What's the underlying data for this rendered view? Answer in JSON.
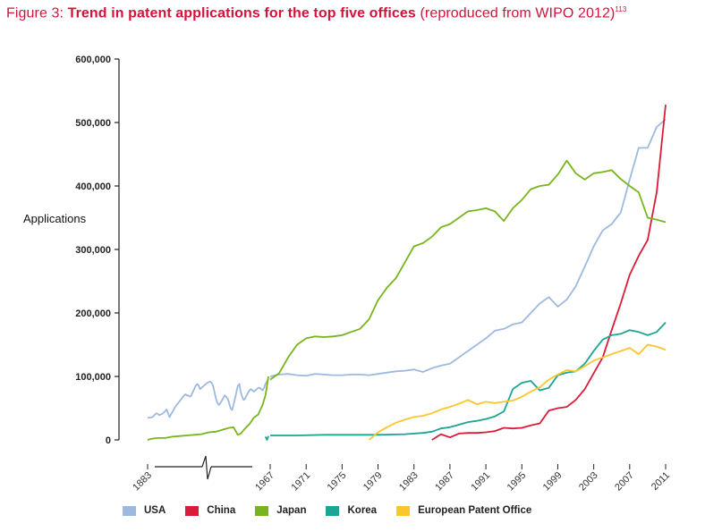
{
  "title": {
    "prefix": "Figure 3: ",
    "main": "Trend in patent applications for the top five offices",
    "suffix": " (reproduced from WIPO 2012)",
    "footnote": "113"
  },
  "colors": {
    "title": "#d0143c",
    "USA": "#9db9e0",
    "China": "#d91c3a",
    "Japan": "#78b41e",
    "Korea": "#1aa595",
    "European Patent Office": "#fbc52c"
  },
  "chart_data": {
    "type": "line",
    "ylabel": "Applications",
    "ylim": [
      0,
      600000
    ],
    "yticks": [
      "0",
      "100,000",
      "200,000",
      "300,000",
      "400,000",
      "500,000",
      "600,000"
    ],
    "xticks": [
      "1883",
      "1967",
      "1971",
      "1975",
      "1979",
      "1983",
      "1987",
      "1991",
      "1995",
      "1999",
      "2003",
      "2007",
      "2011"
    ],
    "x_axis_break": "between 1883 and 1967",
    "legend_position": "bottom",
    "series": [
      {
        "name": "USA",
        "early_x": [
          1883,
          1884,
          1885,
          1886,
          1887,
          1888,
          1889,
          1890,
          1891,
          1892,
          1893,
          1894,
          1895,
          1896,
          1897,
          1898,
          1899,
          1900,
          1901,
          1902,
          1903,
          1904,
          1905,
          1906,
          1907,
          1908,
          1909,
          1910,
          1911,
          1912,
          1913,
          1914,
          1915,
          1916,
          1917,
          1918,
          1919,
          1920,
          1921,
          1922,
          1923,
          1924,
          1925,
          1926,
          1927,
          1928,
          1929,
          1930,
          1931,
          1932,
          1933,
          1934,
          1935,
          1936,
          1937,
          1938,
          1939,
          1940,
          1941,
          1942,
          1943,
          1944,
          1945,
          1946,
          1947,
          1948,
          1949,
          1950,
          1951,
          1952,
          1953,
          1954,
          1955,
          1956,
          1957,
          1958,
          1959,
          1960,
          1961,
          1962,
          1963,
          1964,
          1965,
          1966
        ],
        "early_values": [
          35000,
          35000,
          35000,
          36000,
          37000,
          40000,
          42000,
          41000,
          39000,
          40000,
          41000,
          43000,
          45000,
          48000,
          42000,
          36000,
          40000,
          44000,
          48000,
          52000,
          55000,
          58000,
          61000,
          64000,
          67000,
          70000,
          72000,
          70000,
          70000,
          68000,
          70000,
          75000,
          80000,
          85000,
          88000,
          86000,
          80000,
          82000,
          84000,
          86000,
          88000,
          90000,
          91000,
          92000,
          90000,
          85000,
          75000,
          65000,
          58000,
          55000,
          58000,
          62000,
          66000,
          70000,
          68000,
          65000,
          58000,
          50000,
          47000,
          55000,
          65000,
          75000,
          85000,
          88000,
          75000,
          68000,
          63000,
          65000,
          70000,
          74000,
          78000,
          80000,
          78000,
          76000,
          78000,
          80000,
          82000,
          82000,
          80000,
          78000,
          82000,
          88000,
          92000,
          96000
        ],
        "x": [
          1967,
          1968,
          1969,
          1970,
          1971,
          1972,
          1973,
          1974,
          1975,
          1976,
          1977,
          1978,
          1979,
          1980,
          1981,
          1982,
          1983,
          1984,
          1985,
          1986,
          1987,
          1988,
          1989,
          1990,
          1991,
          1992,
          1993,
          1994,
          1995,
          1996,
          1997,
          1998,
          1999,
          2000,
          2001,
          2002,
          2003,
          2004,
          2005,
          2006,
          2007,
          2008,
          2009,
          2010,
          2011
        ],
        "values": [
          100000,
          103000,
          104000,
          102000,
          101000,
          104000,
          103000,
          102000,
          102000,
          103000,
          103000,
          102000,
          104000,
          106000,
          108000,
          109000,
          111000,
          107000,
          113000,
          117000,
          120000,
          130000,
          140000,
          150000,
          160000,
          172000,
          175000,
          182000,
          185000,
          200000,
          215000,
          225000,
          210000,
          221000,
          242000,
          273000,
          305000,
          330000,
          340000,
          358000,
          410000,
          460000,
          460000,
          493000,
          505000
        ]
      },
      {
        "name": "China",
        "x": [
          1985,
          1986,
          1987,
          1988,
          1989,
          1990,
          1991,
          1992,
          1993,
          1994,
          1995,
          1996,
          1997,
          1998,
          1999,
          2000,
          2001,
          2002,
          2003,
          2004,
          2005,
          2006,
          2007,
          2008,
          2009,
          2010,
          2011
        ],
        "values": [
          0,
          9000,
          4000,
          10000,
          11000,
          11000,
          12000,
          14000,
          19000,
          18000,
          19000,
          23000,
          26000,
          46000,
          50000,
          52000,
          63000,
          80000,
          105000,
          130000,
          173000,
          215000,
          260000,
          290000,
          315000,
          390000,
          528000
        ]
      },
      {
        "name": "Japan",
        "early_x": [
          1883,
          1886,
          1890,
          1895,
          1900,
          1905,
          1910,
          1915,
          1920,
          1925,
          1930,
          1933,
          1936,
          1939,
          1942,
          1945,
          1947,
          1950,
          1953,
          1956,
          1959,
          1962,
          1964,
          1965,
          1966
        ],
        "early_values": [
          0,
          2000,
          3000,
          3000,
          5000,
          6000,
          7000,
          8000,
          9000,
          12000,
          13000,
          15000,
          17000,
          19000,
          20000,
          8000,
          10000,
          18000,
          25000,
          35000,
          40000,
          55000,
          70000,
          85000,
          100000
        ],
        "x": [
          1967,
          1968,
          1969,
          1970,
          1971,
          1972,
          1973,
          1974,
          1975,
          1976,
          1977,
          1978,
          1979,
          1980,
          1981,
          1982,
          1983,
          1984,
          1985,
          1986,
          1987,
          1988,
          1989,
          1990,
          1991,
          1992,
          1993,
          1994,
          1995,
          1996,
          1997,
          1998,
          1999,
          2000,
          2001,
          2002,
          2003,
          2004,
          2005,
          2006,
          2007,
          2008,
          2009,
          2010,
          2011
        ],
        "values": [
          95000,
          105000,
          130000,
          150000,
          160000,
          163000,
          162000,
          163000,
          165000,
          170000,
          175000,
          190000,
          220000,
          240000,
          255000,
          280000,
          305000,
          310000,
          320000,
          335000,
          340000,
          350000,
          360000,
          362000,
          365000,
          360000,
          345000,
          365000,
          378000,
          395000,
          400000,
          402000,
          418000,
          440000,
          420000,
          410000,
          420000,
          422000,
          425000,
          411000,
          400000,
          390000,
          350000,
          347000,
          343000
        ]
      },
      {
        "name": "Korea",
        "early_x": [
          1964,
          1965,
          1966
        ],
        "early_values": [
          5000,
          0,
          6000
        ],
        "x": [
          1967,
          1970,
          1973,
          1976,
          1979,
          1982,
          1984,
          1985,
          1986,
          1987,
          1988,
          1989,
          1990,
          1991,
          1992,
          1993,
          1994,
          1995,
          1996,
          1997,
          1998,
          1999,
          2000,
          2001,
          2002,
          2003,
          2004,
          2005,
          2006,
          2007,
          2008,
          2009,
          2010,
          2011
        ],
        "values": [
          7000,
          7000,
          8000,
          8000,
          8000,
          9000,
          11000,
          13000,
          18000,
          20000,
          24000,
          28000,
          30000,
          33000,
          37000,
          45000,
          80000,
          90000,
          93000,
          78000,
          82000,
          102000,
          106000,
          108000,
          120000,
          140000,
          158000,
          165000,
          167000,
          173000,
          170000,
          165000,
          170000,
          185000
        ]
      },
      {
        "name": "European Patent Office",
        "x": [
          1978,
          1979,
          1980,
          1981,
          1982,
          1983,
          1984,
          1985,
          1986,
          1987,
          1988,
          1989,
          1990,
          1991,
          1992,
          1993,
          1994,
          1995,
          1996,
          1997,
          1998,
          1999,
          2000,
          2001,
          2002,
          2003,
          2004,
          2005,
          2006,
          2007,
          2008,
          2009,
          2010,
          2011
        ],
        "values": [
          0,
          12000,
          20000,
          27000,
          32000,
          36000,
          38000,
          42000,
          48000,
          52000,
          57000,
          63000,
          56000,
          60000,
          58000,
          60000,
          62000,
          68000,
          76000,
          83000,
          95000,
          103000,
          110000,
          108000,
          116000,
          125000,
          130000,
          135000,
          140000,
          145000,
          135000,
          150000,
          147000,
          142000
        ]
      }
    ]
  }
}
